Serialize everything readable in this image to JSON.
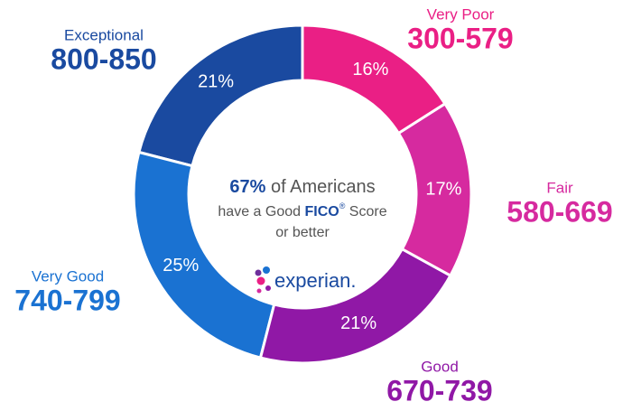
{
  "chart_data": {
    "type": "donut",
    "categories": [
      "Very Poor",
      "Fair",
      "Good",
      "Very Good",
      "Exceptional"
    ],
    "ranges": [
      "300-579",
      "580-669",
      "670-739",
      "740-799",
      "800-850"
    ],
    "values": [
      16,
      17,
      21,
      25,
      21
    ],
    "value_labels": [
      "16%",
      "17%",
      "21%",
      "25%",
      "21%"
    ],
    "colors": [
      "#ea1f85",
      "#d62a9f",
      "#9018a6",
      "#1a72d2",
      "#1a4aa0"
    ],
    "center_text": {
      "stat": "67%",
      "line1": "of Americans",
      "line2": "have a Good",
      "fico": "FICO",
      "reg": "®",
      "score": "Score",
      "line3": "or better"
    },
    "logo": "experian."
  }
}
